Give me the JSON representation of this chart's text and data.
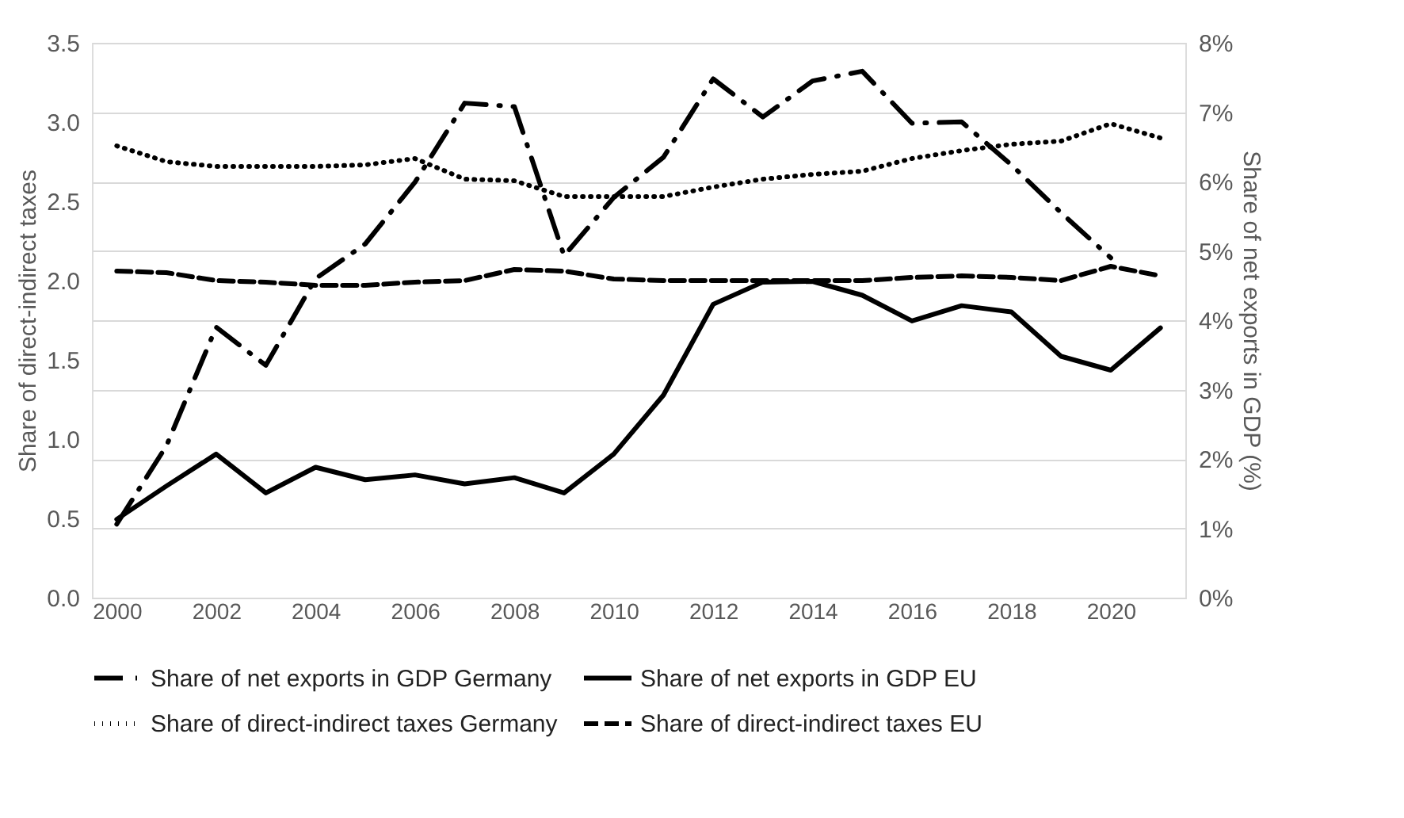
{
  "chart_data": {
    "type": "line",
    "ylabel": "Share of direct-indirect taxes",
    "y2label": "Share of net exports in GDP (%)",
    "x": [
      2000,
      2001,
      2002,
      2003,
      2004,
      2005,
      2006,
      2007,
      2008,
      2009,
      2010,
      2011,
      2012,
      2013,
      2014,
      2015,
      2016,
      2017,
      2018,
      2019,
      2020,
      2021
    ],
    "xlim": [
      1999.5,
      2021.5
    ],
    "xticks": [
      2000,
      2002,
      2004,
      2006,
      2008,
      2010,
      2012,
      2014,
      2016,
      2018,
      2020
    ],
    "ylim": [
      0,
      3.5
    ],
    "yticks": [
      {
        "value": 0,
        "label": "0.0"
      },
      0.5,
      {
        "value": 1,
        "label": "1.0"
      },
      1.5,
      {
        "value": 2,
        "label": "2.0"
      },
      2.5,
      {
        "value": 3,
        "label": "3.0"
      },
      3.5
    ],
    "y2lim": [
      0,
      8
    ],
    "y2ticks": [
      {
        "value": 0,
        "label": "0%"
      },
      {
        "value": 1,
        "label": "1%"
      },
      {
        "value": 2,
        "label": "2%"
      },
      {
        "value": 3,
        "label": "3%"
      },
      {
        "value": 4,
        "label": "4%"
      },
      {
        "value": 5,
        "label": "5%"
      },
      {
        "value": 6,
        "label": "6%"
      },
      {
        "value": 7,
        "label": "7%"
      },
      {
        "value": 8,
        "label": "8%"
      }
    ],
    "grid": "y2",
    "legend": "bottom",
    "marker": "none",
    "series": [
      {
        "name": "Share of net exports in GDP Germany",
        "color": "#000000",
        "axis": "y2",
        "line_style": "dashdot",
        "values": [
          1.06,
          2.19,
          3.9,
          3.35,
          4.6,
          5.1,
          5.99,
          7.13,
          7.08,
          4.93,
          5.77,
          6.35,
          7.48,
          6.93,
          7.45,
          7.59,
          6.84,
          6.86,
          6.24,
          5.55,
          4.9,
          null
        ]
      },
      {
        "name": "Share of net exports in GDP EU",
        "color": "#000000",
        "axis": "y2",
        "line_style": "solid",
        "values": [
          1.13,
          1.61,
          2.07,
          1.51,
          1.88,
          1.7,
          1.77,
          1.64,
          1.73,
          1.51,
          2.07,
          2.92,
          4.23,
          4.55,
          4.56,
          4.36,
          3.99,
          4.21,
          4.12,
          3.48,
          3.28,
          3.89
        ]
      },
      {
        "name": "Share of direct-indirect taxes Germany",
        "color": "#000000",
        "line_style": "dotted",
        "values": [
          2.85,
          2.75,
          2.72,
          2.72,
          2.72,
          2.73,
          2.77,
          2.64,
          2.63,
          2.53,
          2.53,
          2.53,
          2.59,
          2.64,
          2.67,
          2.69,
          2.77,
          2.82,
          2.86,
          2.88,
          2.99,
          2.9
        ]
      },
      {
        "name": "Share of direct-indirect taxes EU",
        "color": "#000000",
        "line_style": "dashed",
        "values": [
          2.06,
          2.05,
          2.0,
          1.99,
          1.97,
          1.97,
          1.99,
          2.0,
          2.07,
          2.06,
          2.01,
          2.0,
          2.0,
          2.0,
          2.0,
          2.0,
          2.02,
          2.03,
          2.02,
          2.0,
          2.09,
          2.03
        ]
      }
    ]
  }
}
